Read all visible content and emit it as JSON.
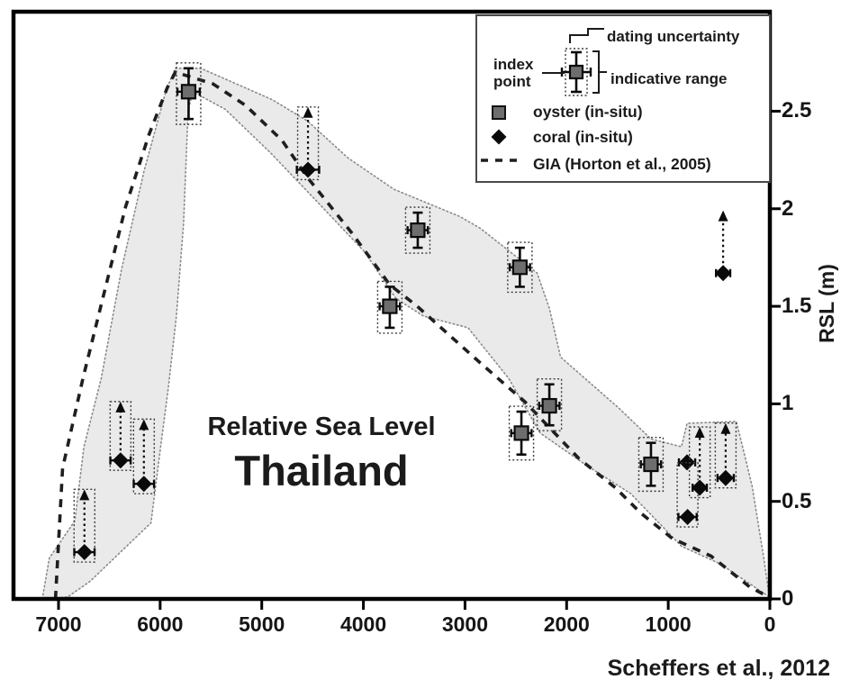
{
  "figure": {
    "annotation_line1": "Relative Sea Level",
    "annotation_line2": "Thailand",
    "caption": "Scheffers et al., 2012",
    "y_axis_label": "RSL (m)"
  },
  "legend": {
    "dating_uncertainty": "dating uncertainty",
    "index_point_line1": "index",
    "index_point_line2": "point",
    "indicative_range": "indicative range",
    "items": [
      {
        "symbol": "oyster-square",
        "label": "oyster (in-situ)"
      },
      {
        "symbol": "coral-diamond",
        "label": "coral (in-situ)"
      },
      {
        "symbol": "gia-dashed-line",
        "label": "GIA (Horton et al., 2005)"
      }
    ]
  },
  "colors": {
    "text": "#1b1b1b",
    "frame": "#000000",
    "envelope_fill": "#eaeaea",
    "envelope_edge": "#8a8a8a",
    "gia_line": "#1f1f1f",
    "oyster_fill": "#6e6e6e",
    "coral_fill": "#0a0a0a",
    "box_dash": "#3a3a3a"
  },
  "chart_data": {
    "type": "scatter",
    "title": "Relative Sea Level Thailand",
    "xlabel": "",
    "ylabel": "RSL (m)",
    "x_ticks": [
      7000,
      6000,
      5000,
      4000,
      3000,
      2000,
      1000,
      0
    ],
    "y_ticks": [
      0,
      0.5,
      1,
      1.5,
      2,
      2.5
    ],
    "xlim": [
      7443,
      0
    ],
    "ylim": [
      0,
      3.01
    ],
    "x_axis_reversed": true,
    "grid": false,
    "legend_position": "top-right",
    "series": [
      {
        "name": "oyster (in-situ)",
        "marker": "square",
        "points": [
          {
            "age": 5720,
            "rsl": 2.6,
            "range": [
              2.46,
              2.72
            ],
            "age_err": 110
          },
          {
            "age": 3740,
            "rsl": 1.5,
            "range": [
              1.39,
              1.6
            ],
            "age_err": 100
          },
          {
            "age": 3465,
            "rsl": 1.89,
            "range": [
              1.8,
              1.98
            ],
            "age_err": 100
          },
          {
            "age": 2460,
            "rsl": 1.7,
            "range": [
              1.6,
              1.8
            ],
            "age_err": 100
          },
          {
            "age": 2445,
            "rsl": 0.85,
            "range": [
              0.74,
              0.96
            ],
            "age_err": 100
          },
          {
            "age": 2170,
            "rsl": 0.99,
            "range": [
              0.89,
              1.1
            ],
            "age_err": 100
          },
          {
            "age": 1170,
            "rsl": 0.69,
            "range": [
              0.58,
              0.8
            ],
            "age_err": 100
          }
        ]
      },
      {
        "name": "coral (in-situ)",
        "marker": "diamond",
        "points": [
          {
            "age": 6745,
            "rsl": 0.24,
            "min_to": 0.52,
            "age_err": 100,
            "boxed": true
          },
          {
            "age": 6390,
            "rsl": 0.71,
            "min_to": 0.97,
            "age_err": 100,
            "boxed": true
          },
          {
            "age": 6160,
            "rsl": 0.59,
            "min_to": 0.88,
            "age_err": 100,
            "boxed": true
          },
          {
            "age": 4545,
            "rsl": 2.2,
            "min_to": 2.48,
            "age_err": 110,
            "boxed": true
          },
          {
            "age": 815,
            "rsl": 0.7,
            "age_err": 80,
            "boxed": false
          },
          {
            "age": 810,
            "rsl": 0.42,
            "box_to": 0.68,
            "age_err": 90,
            "boxed": true
          },
          {
            "age": 690,
            "rsl": 0.57,
            "min_to": 0.84,
            "age_err": 70,
            "boxed": true
          },
          {
            "age": 435,
            "rsl": 0.62,
            "min_to": 0.86,
            "age_err": 80,
            "boxed": true
          },
          {
            "age": 460,
            "rsl": 1.67,
            "min_to": 1.95,
            "age_err": 70,
            "boxed": false
          }
        ]
      }
    ],
    "gia_curve": {
      "name": "GIA (Horton et al., 2005)",
      "style": "dashed",
      "points": [
        [
          7030,
          0.0
        ],
        [
          6960,
          0.67
        ],
        [
          6760,
          1.13
        ],
        [
          6560,
          1.55
        ],
        [
          6340,
          2.01
        ],
        [
          6110,
          2.38
        ],
        [
          5930,
          2.62
        ],
        [
          5850,
          2.7
        ],
        [
          5480,
          2.64
        ],
        [
          5160,
          2.53
        ],
        [
          4800,
          2.35
        ],
        [
          4550,
          2.16
        ],
        [
          4120,
          1.88
        ],
        [
          3740,
          1.61
        ],
        [
          3470,
          1.5
        ],
        [
          3150,
          1.35
        ],
        [
          2850,
          1.21
        ],
        [
          2410,
          1.01
        ],
        [
          1880,
          0.72
        ],
        [
          1520,
          0.57
        ],
        [
          1270,
          0.44
        ],
        [
          960,
          0.31
        ],
        [
          580,
          0.22
        ],
        [
          195,
          0.06
        ],
        [
          10,
          0.01
        ]
      ]
    },
    "envelope_polygon": {
      "name": "index-point envelope",
      "points": [
        [
          7160,
          0.0
        ],
        [
          7090,
          0.21
        ],
        [
          6840,
          0.4
        ],
        [
          6750,
          0.78
        ],
        [
          6580,
          1.13
        ],
        [
          6380,
          1.69
        ],
        [
          6160,
          2.19
        ],
        [
          5940,
          2.61
        ],
        [
          5850,
          2.72
        ],
        [
          5600,
          2.72
        ],
        [
          4900,
          2.56
        ],
        [
          4550,
          2.45
        ],
        [
          4150,
          2.26
        ],
        [
          3700,
          2.1
        ],
        [
          3050,
          1.96
        ],
        [
          2850,
          1.9
        ],
        [
          2290,
          1.67
        ],
        [
          2170,
          1.49
        ],
        [
          2060,
          1.24
        ],
        [
          1490,
          0.98
        ],
        [
          1170,
          0.82
        ],
        [
          870,
          0.78
        ],
        [
          815,
          0.9
        ],
        [
          330,
          0.91
        ],
        [
          175,
          0.58
        ],
        [
          60,
          0.21
        ],
        [
          5,
          0.01
        ],
        [
          490,
          0.18
        ],
        [
          870,
          0.27
        ],
        [
          1370,
          0.54
        ],
        [
          1820,
          0.69
        ],
        [
          2260,
          0.85
        ],
        [
          2570,
          1.13
        ],
        [
          2970,
          1.39
        ],
        [
          3410,
          1.45
        ],
        [
          3680,
          1.54
        ],
        [
          3990,
          1.78
        ],
        [
          4480,
          2.05
        ],
        [
          4920,
          2.29
        ],
        [
          5360,
          2.51
        ],
        [
          5680,
          2.6
        ],
        [
          5725,
          2.5
        ],
        [
          5770,
          1.92
        ],
        [
          5840,
          1.45
        ],
        [
          5920,
          1.08
        ],
        [
          6000,
          0.76
        ],
        [
          6090,
          0.39
        ],
        [
          6690,
          0.09
        ],
        [
          6910,
          0.01
        ]
      ]
    }
  }
}
